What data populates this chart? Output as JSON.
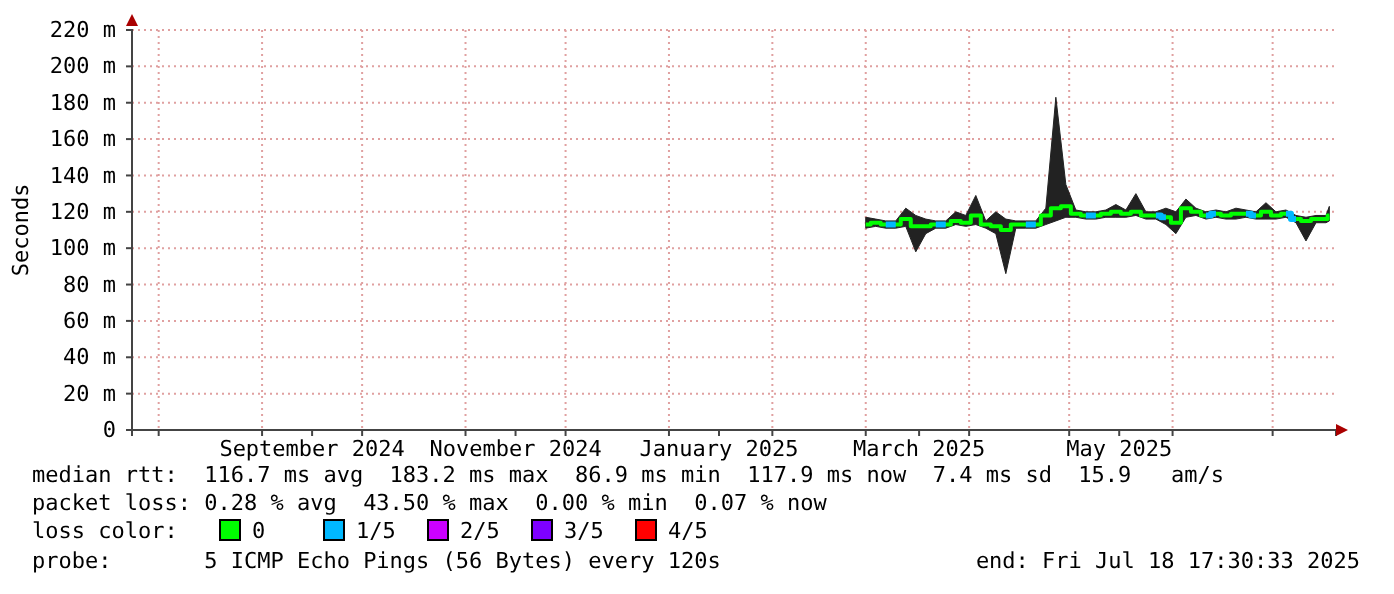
{
  "chart_data": {
    "type": "step",
    "ylabel": "Seconds",
    "legend_title": "loss color:",
    "legend": "bottom left",
    "grid": true,
    "ylim": [
      0,
      220
    ],
    "yticks": [
      0,
      {
        "value": 20,
        "label": "20 m"
      },
      {
        "value": 40,
        "label": "40 m"
      },
      {
        "value": 60,
        "label": "60 m"
      },
      {
        "value": 80,
        "label": "80 m"
      },
      {
        "value": 100,
        "label": "100 m"
      },
      {
        "value": 120,
        "label": "120 m"
      },
      {
        "value": 140,
        "label": "140 m"
      },
      {
        "value": 160,
        "label": "160 m"
      },
      {
        "value": 180,
        "label": "180 m"
      },
      {
        "value": 200,
        "label": "200 m"
      },
      {
        "value": 220,
        "label": "220 m"
      }
    ],
    "xlim": [
      "2024-07-24",
      "2025-07-20"
    ],
    "xticks": [
      {
        "value": "2024-08-01",
        "label": null
      },
      {
        "value": "2024-09-01",
        "label": null
      },
      {
        "value": "2024-09-16",
        "label": "September 2024"
      },
      {
        "value": "2024-10-01",
        "label": null
      },
      {
        "value": "2024-11-01",
        "label": null
      },
      {
        "value": "2024-11-16",
        "label": "November 2024"
      },
      {
        "value": "2024-12-01",
        "label": null
      },
      {
        "value": "2025-01-01",
        "label": null
      },
      {
        "value": "2025-01-16",
        "label": "January 2025"
      },
      {
        "value": "2025-02-01",
        "label": null
      },
      {
        "value": "2025-03-01",
        "label": null
      },
      {
        "value": "2025-03-17",
        "label": "March 2025"
      },
      {
        "value": "2025-04-01",
        "label": null
      },
      {
        "value": "2025-05-01",
        "label": null
      },
      {
        "value": "2025-05-16",
        "label": "May 2025"
      },
      {
        "value": "2025-06-01",
        "label": null
      },
      {
        "value": "2025-07-01",
        "label": null
      }
    ],
    "x": [
      "2025-03-01",
      "2025-03-04",
      "2025-03-07",
      "2025-03-10",
      "2025-03-13",
      "2025-03-16",
      "2025-03-19",
      "2025-03-22",
      "2025-03-25",
      "2025-03-28",
      "2025-03-31",
      "2025-04-03",
      "2025-04-06",
      "2025-04-09",
      "2025-04-12",
      "2025-04-15",
      "2025-04-18",
      "2025-04-21",
      "2025-04-24",
      "2025-04-27",
      "2025-04-30",
      "2025-05-03",
      "2025-05-06",
      "2025-05-09",
      "2025-05-12",
      "2025-05-15",
      "2025-05-18",
      "2025-05-21",
      "2025-05-24",
      "2025-05-27",
      "2025-05-30",
      "2025-06-02",
      "2025-06-05",
      "2025-06-08",
      "2025-06-11",
      "2025-06-14",
      "2025-06-17",
      "2025-06-20",
      "2025-06-23",
      "2025-06-26",
      "2025-06-29",
      "2025-07-02",
      "2025-07-05",
      "2025-07-08",
      "2025-07-11",
      "2025-07-14",
      "2025-07-17",
      "2025-07-18"
    ],
    "series": [
      {
        "name": "0",
        "color": "#00ff00",
        "values": [
          113,
          114,
          113,
          113,
          116,
          112,
          112,
          113,
          113,
          115,
          114,
          118,
          113,
          112,
          110,
          113,
          113,
          113,
          118,
          122,
          123,
          119,
          118,
          118,
          119,
          120,
          119,
          120,
          118,
          118,
          117,
          114,
          122,
          120,
          118,
          119,
          118,
          119,
          119,
          118,
          120,
          118,
          119,
          116,
          115,
          116,
          116,
          118
        ],
        "lower": [
          111,
          112,
          111,
          111,
          112,
          98,
          108,
          111,
          111,
          113,
          112,
          113,
          111,
          108,
          86,
          111,
          111,
          111,
          113,
          115,
          117,
          117,
          116,
          116,
          117,
          117,
          117,
          118,
          116,
          116,
          113,
          108,
          117,
          118,
          116,
          117,
          116,
          116,
          117,
          116,
          116,
          116,
          117,
          114,
          104,
          114,
          114,
          115
        ],
        "upper": [
          117,
          116,
          115,
          115,
          122,
          118,
          116,
          115,
          115,
          120,
          118,
          129,
          115,
          120,
          116,
          115,
          115,
          115,
          122,
          183,
          135,
          121,
          120,
          120,
          121,
          124,
          121,
          130,
          120,
          120,
          122,
          120,
          127,
          122,
          120,
          121,
          120,
          122,
          121,
          120,
          125,
          120,
          121,
          118,
          117,
          118,
          118,
          123
        ]
      },
      {
        "name": "1/5",
        "color": "#00b8ff",
        "values": [
          null,
          null,
          113,
          113,
          null,
          null,
          null,
          113,
          113,
          null,
          null,
          null,
          null,
          null,
          null,
          null,
          113,
          113,
          null,
          null,
          null,
          null,
          118,
          118,
          null,
          null,
          null,
          null,
          null,
          118,
          117,
          null,
          null,
          null,
          118,
          119,
          null,
          null,
          119,
          118,
          null,
          null,
          119,
          116,
          null,
          null,
          null,
          null
        ]
      },
      {
        "name": "2/5",
        "color": "#cc00ff",
        "values": [
          null,
          null,
          null,
          null,
          null,
          null,
          null,
          null,
          null,
          null,
          null,
          null,
          null,
          null,
          null,
          null,
          null,
          null,
          null,
          null,
          null,
          null,
          null,
          null,
          null,
          null,
          null,
          null,
          null,
          null,
          null,
          null,
          null,
          null,
          null,
          null,
          null,
          null,
          null,
          null,
          null,
          null,
          null,
          null,
          null,
          null,
          null,
          null
        ]
      },
      {
        "name": "3/5",
        "color": "#7e00ff",
        "values": [
          null,
          null,
          null,
          null,
          null,
          null,
          null,
          null,
          null,
          null,
          null,
          null,
          null,
          null,
          null,
          null,
          null,
          null,
          null,
          null,
          null,
          null,
          null,
          null,
          null,
          null,
          null,
          null,
          null,
          null,
          null,
          null,
          null,
          null,
          null,
          null,
          null,
          null,
          null,
          null,
          null,
          null,
          null,
          null,
          null,
          null,
          null,
          null
        ]
      },
      {
        "name": "4/5",
        "color": "#ff0000",
        "values": [
          null,
          null,
          null,
          null,
          null,
          null,
          null,
          null,
          null,
          null,
          null,
          null,
          null,
          null,
          null,
          null,
          null,
          null,
          null,
          null,
          null,
          null,
          null,
          null,
          null,
          null,
          null,
          null,
          null,
          null,
          null,
          null,
          null,
          null,
          null,
          null,
          null,
          null,
          null,
          null,
          null,
          null,
          null,
          null,
          null,
          null,
          null,
          null
        ]
      }
    ],
    "annotations": [
      "median rtt:  116.7 ms avg  183.2 ms max  86.9 ms min  117.9 ms now  7.4 ms sd  15.9   am/s",
      "packet loss: 0.28 % avg  43.50 % max  0.00 % min  0.07 % now",
      "probe:       5 ICMP Echo Pings (56 Bytes) every 120s",
      "end: Fri Jul 18 17:30:33 2025"
    ]
  }
}
